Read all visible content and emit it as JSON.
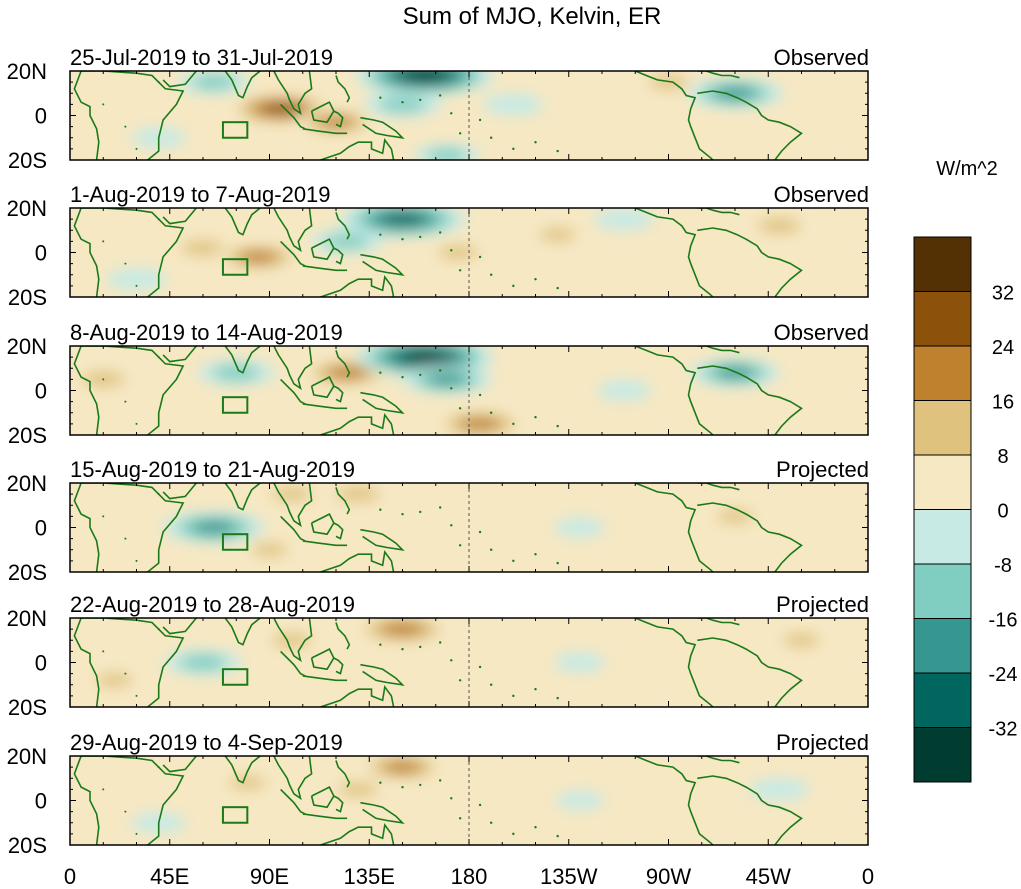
{
  "chart_data": {
    "type": "heatmap",
    "title": "Sum of MJO, Kelvin, ER",
    "xlabel": "",
    "ylabel": "",
    "x_tick_labels": [
      "0",
      "45E",
      "90E",
      "135E",
      "180",
      "135W",
      "90W",
      "45W",
      "0"
    ],
    "x_ticks_deg": [
      0,
      45,
      90,
      135,
      180,
      225,
      270,
      315,
      360
    ],
    "xlim": [
      0,
      360
    ],
    "y_tick_labels": [
      "20N",
      "0",
      "20S"
    ],
    "y_ticks_deg": [
      20,
      0,
      -20
    ],
    "ylim": [
      -20,
      20
    ],
    "dateline_deg": 180,
    "colorbar": {
      "title": "W/m^2",
      "tick_labels": [
        "32",
        "24",
        "16",
        "8",
        "0",
        "-8",
        "-16",
        "-24",
        "-32"
      ],
      "levels": [
        -32,
        -24,
        -16,
        -8,
        0,
        8,
        16,
        24,
        32
      ],
      "colors": [
        "#003c30",
        "#01665e",
        "#35978f",
        "#80cdc1",
        "#c7eae5",
        "#f6e8c3",
        "#dfc27d",
        "#bf812d",
        "#8c510a",
        "#543005"
      ]
    },
    "panels": [
      {
        "period": "25-Jul-2019 to 31-Jul-2019",
        "status": "Observed",
        "anomalies": [
          {
            "lon": 95,
            "lat": 3,
            "value": 24
          },
          {
            "lon": 120,
            "lat": -3,
            "value": 16
          },
          {
            "lon": 65,
            "lat": 15,
            "value": -12
          },
          {
            "lon": 150,
            "lat": 5,
            "value": -14
          },
          {
            "lon": 160,
            "lat": 18,
            "value": -34
          },
          {
            "lon": 200,
            "lat": 5,
            "value": -8
          },
          {
            "lon": 270,
            "lat": 15,
            "value": 10
          },
          {
            "lon": 300,
            "lat": 10,
            "value": -20
          },
          {
            "lon": 40,
            "lat": -10,
            "value": -6
          },
          {
            "lon": 170,
            "lat": -18,
            "value": -10
          }
        ]
      },
      {
        "period": "1-Aug-2019 to 7-Aug-2019",
        "status": "Observed",
        "anomalies": [
          {
            "lon": 60,
            "lat": 2,
            "value": 12
          },
          {
            "lon": 85,
            "lat": -2,
            "value": 18
          },
          {
            "lon": 150,
            "lat": 15,
            "value": -30
          },
          {
            "lon": 125,
            "lat": 5,
            "value": -12
          },
          {
            "lon": 175,
            "lat": 0,
            "value": 10
          },
          {
            "lon": 220,
            "lat": 8,
            "value": 8
          },
          {
            "lon": 320,
            "lat": 12,
            "value": 12
          },
          {
            "lon": 250,
            "lat": 15,
            "value": -8
          },
          {
            "lon": 30,
            "lat": -12,
            "value": -8
          }
        ]
      },
      {
        "period": "8-Aug-2019 to 14-Aug-2019",
        "status": "Observed",
        "anomalies": [
          {
            "lon": 75,
            "lat": 8,
            "value": -14
          },
          {
            "lon": 125,
            "lat": 8,
            "value": 20
          },
          {
            "lon": 160,
            "lat": 15,
            "value": -34
          },
          {
            "lon": 170,
            "lat": 5,
            "value": -18
          },
          {
            "lon": 185,
            "lat": -15,
            "value": 20
          },
          {
            "lon": 15,
            "lat": 5,
            "value": 12
          },
          {
            "lon": 300,
            "lat": 8,
            "value": -18
          },
          {
            "lon": 250,
            "lat": 0,
            "value": -6
          }
        ]
      },
      {
        "period": "15-Aug-2019 to 21-Aug-2019",
        "status": "Projected",
        "anomalies": [
          {
            "lon": 65,
            "lat": 0,
            "value": -22
          },
          {
            "lon": 100,
            "lat": 15,
            "value": 10
          },
          {
            "lon": 130,
            "lat": 15,
            "value": 12
          },
          {
            "lon": 90,
            "lat": -10,
            "value": 8
          },
          {
            "lon": 230,
            "lat": 0,
            "value": -5
          },
          {
            "lon": 300,
            "lat": 5,
            "value": 8
          }
        ]
      },
      {
        "period": "22-Aug-2019 to 28-Aug-2019",
        "status": "Projected",
        "anomalies": [
          {
            "lon": 60,
            "lat": 0,
            "value": -14
          },
          {
            "lon": 150,
            "lat": 15,
            "value": 22
          },
          {
            "lon": 100,
            "lat": 10,
            "value": 10
          },
          {
            "lon": 20,
            "lat": -8,
            "value": 8
          },
          {
            "lon": 230,
            "lat": 0,
            "value": -5
          },
          {
            "lon": 330,
            "lat": 10,
            "value": 8
          }
        ]
      },
      {
        "period": "29-Aug-2019 to 4-Sep-2019",
        "status": "Projected",
        "anomalies": [
          {
            "lon": 150,
            "lat": 15,
            "value": 18
          },
          {
            "lon": 130,
            "lat": 5,
            "value": 10
          },
          {
            "lon": 80,
            "lat": 8,
            "value": 8
          },
          {
            "lon": 40,
            "lat": -10,
            "value": -6
          },
          {
            "lon": 230,
            "lat": 0,
            "value": -4
          },
          {
            "lon": 320,
            "lat": 5,
            "value": -8
          }
        ]
      }
    ]
  }
}
